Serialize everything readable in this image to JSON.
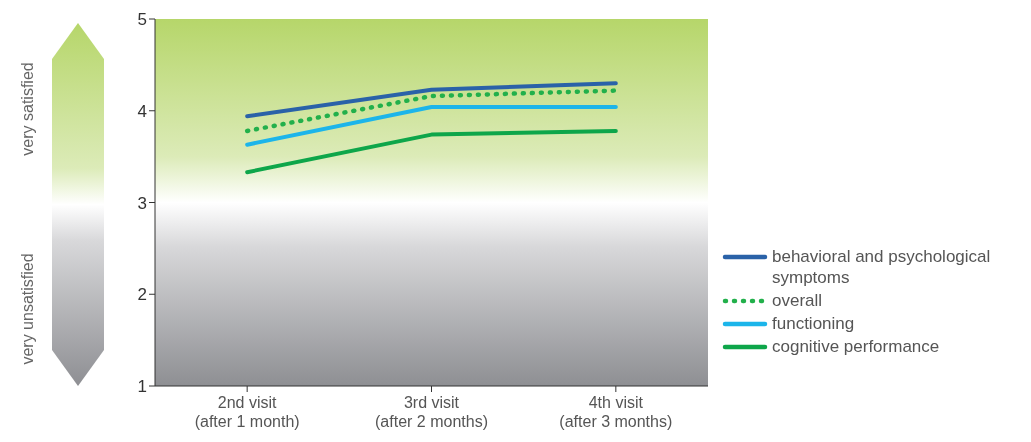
{
  "chart_data": {
    "type": "line",
    "categories": [
      "2nd visit\n(after 1 month)",
      "3rd visit\n(after 2 months)",
      "4th visit\n(after 3 months)"
    ],
    "series": [
      {
        "name": "behavioral and psychological symptoms",
        "color": "#2a62a8",
        "line_style": "solid",
        "values": [
          3.94,
          4.23,
          4.3
        ]
      },
      {
        "name": "overall",
        "color": "#22b04b",
        "line_style": "dotted",
        "values": [
          3.78,
          4.16,
          4.22
        ]
      },
      {
        "name": "functioning",
        "color": "#1cb5ea",
        "line_style": "solid",
        "values": [
          3.63,
          4.04,
          4.04
        ]
      },
      {
        "name": "cognitive performance",
        "color": "#0ea64a",
        "line_style": "solid",
        "values": [
          3.33,
          3.74,
          3.78
        ]
      }
    ],
    "ylim": [
      1,
      5
    ],
    "yticks": [
      1,
      2,
      3,
      4,
      5
    ],
    "legend": "bottom right",
    "marker": "none",
    "annotations": [
      "very satisfied",
      "very unsatisfied"
    ]
  }
}
